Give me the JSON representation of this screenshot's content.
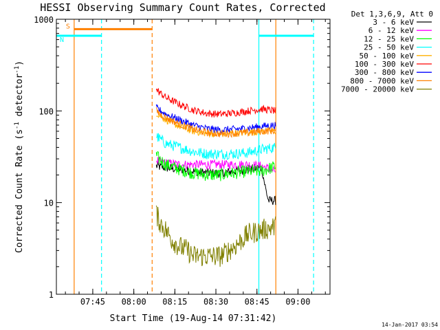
{
  "chart_data": {
    "type": "line",
    "title": "HESSI Observing Summary Count Rates, Corrected",
    "xlabel": "Start Time (19-Aug-14 07:31:42)",
    "ylabel": "Corrected Count Rate (s-1 detector-1)",
    "ylabel_parts": {
      "base": "Corrected Count Rate (s",
      "sup1": "-1",
      "mid": " detector",
      "sup2": "-1",
      "end": ")"
    },
    "yscale": "log",
    "ylim": [
      1,
      1000
    ],
    "xlim_minutes": [
      0,
      100
    ],
    "x_ticks": [
      {
        "label": "07:45",
        "minute": 13.3
      },
      {
        "label": "08:00",
        "minute": 28.3
      },
      {
        "label": "08:15",
        "minute": 43.3
      },
      {
        "label": "08:30",
        "minute": 58.3
      },
      {
        "label": "08:45",
        "minute": 73.3
      },
      {
        "label": "09:00",
        "minute": 88.3
      }
    ],
    "y_ticks": [
      {
        "label": "1",
        "value": 1
      },
      {
        "label": "10",
        "value": 10
      },
      {
        "label": "100",
        "value": 100
      },
      {
        "label": "1000",
        "value": 1000
      }
    ],
    "legend": {
      "header": "Det 1,3,6,9, Att 0",
      "position": "right"
    },
    "series": [
      {
        "name": "3 - 6 keV",
        "color": "#000000",
        "start_min": 36.5,
        "end_min": 80.2,
        "minutes": [
          36.5,
          40,
          45,
          50,
          55,
          60,
          65,
          70,
          75,
          76.5,
          77.5,
          80.2
        ],
        "values": [
          25,
          24,
          23,
          22,
          21,
          21,
          22,
          23,
          24,
          14,
          10.5,
          10.5
        ]
      },
      {
        "name": "6 - 12 keV",
        "color": "#ff00ff",
        "start_min": 36.5,
        "end_min": 80.2,
        "minutes": [
          36.5,
          40,
          45,
          50,
          55,
          60,
          65,
          70,
          75,
          80.2
        ],
        "values": [
          29,
          27,
          26,
          26,
          26,
          26,
          26,
          26,
          25,
          22
        ]
      },
      {
        "name": "12 - 25 keV",
        "color": "#00ff00",
        "start_min": 36.5,
        "end_min": 80.2,
        "minutes": [
          36.5,
          40,
          45,
          50,
          55,
          60,
          65,
          70,
          75,
          80.2
        ],
        "values": [
          32,
          26,
          23,
          21,
          20,
          20,
          21,
          22,
          22,
          25
        ]
      },
      {
        "name": "25 - 50 keV",
        "color": "#00ffff",
        "start_min": 36.5,
        "end_min": 80.2,
        "minutes": [
          36.5,
          40,
          45,
          50,
          55,
          60,
          65,
          70,
          75,
          80.2
        ],
        "values": [
          53,
          44,
          40,
          36,
          34,
          34,
          34,
          35,
          38,
          40
        ]
      },
      {
        "name": "50 - 100 keV",
        "color": "#ffb000",
        "start_min": 36.5,
        "end_min": 80.2,
        "minutes": [
          36.5,
          40,
          45,
          50,
          55,
          60,
          65,
          70,
          75,
          80.2
        ],
        "values": [
          95,
          80,
          68,
          60,
          57,
          56,
          57,
          58,
          60,
          60
        ]
      },
      {
        "name": "100 - 300 keV",
        "color": "#ff0000",
        "start_min": 36.5,
        "end_min": 80.2,
        "minutes": [
          36.5,
          40,
          45,
          50,
          55,
          60,
          65,
          70,
          75,
          80.2
        ],
        "values": [
          170,
          140,
          118,
          102,
          94,
          92,
          95,
          100,
          105,
          100
        ]
      },
      {
        "name": "300 - 800 keV",
        "color": "#0000ff",
        "start_min": 36.5,
        "end_min": 80.2,
        "minutes": [
          36.5,
          40,
          45,
          50,
          55,
          60,
          65,
          70,
          75,
          80.2
        ],
        "values": [
          108,
          92,
          80,
          70,
          64,
          62,
          63,
          65,
          68,
          70
        ]
      },
      {
        "name": "800 - 7000 keV",
        "color": "#ff8000",
        "start_min": 36.5,
        "end_min": 80.2,
        "minutes": [
          36.5,
          40,
          45,
          50,
          55,
          60,
          65,
          70,
          75,
          80.2
        ],
        "values": [
          100,
          84,
          72,
          63,
          58,
          56,
          57,
          58,
          60,
          61
        ]
      },
      {
        "name": "7000 - 20000 keV",
        "color": "#808000",
        "start_min": 36.5,
        "end_min": 80.2,
        "minutes": [
          36.5,
          38,
          40,
          42,
          45,
          48,
          50,
          55,
          60,
          63,
          66,
          70,
          75,
          80.2
        ],
        "values": [
          7.5,
          6,
          5,
          4,
          3.3,
          3,
          2.6,
          2.6,
          2.6,
          3,
          3.5,
          4.5,
          5,
          5.5
        ]
      }
    ],
    "flags": [
      {
        "label": "S",
        "color": "#ff8000",
        "start_min": 6.5,
        "end_min": 35,
        "value": 780
      },
      {
        "label": "N",
        "color": "#00ffff",
        "start_min": 0,
        "end_min": 16.5,
        "value": 660
      },
      {
        "label": "",
        "color": "#00ffff",
        "start_min": 74,
        "end_min": 94,
        "value": 660
      }
    ],
    "markers": [
      {
        "minute": 6.5,
        "color": "#ff8000",
        "style": "solid"
      },
      {
        "minute": 16.5,
        "color": "#00ffff",
        "style": "dashed"
      },
      {
        "minute": 35,
        "color": "#ff8000",
        "style": "dashed"
      },
      {
        "minute": 74,
        "color": "#00ffff",
        "style": "solid"
      },
      {
        "minute": 80.2,
        "color": "#ff8000",
        "style": "solid"
      },
      {
        "minute": 94,
        "color": "#00ffff",
        "style": "dashed"
      }
    ],
    "grid": false
  },
  "footer": {
    "date": "14-Jan-2017 03:54"
  }
}
